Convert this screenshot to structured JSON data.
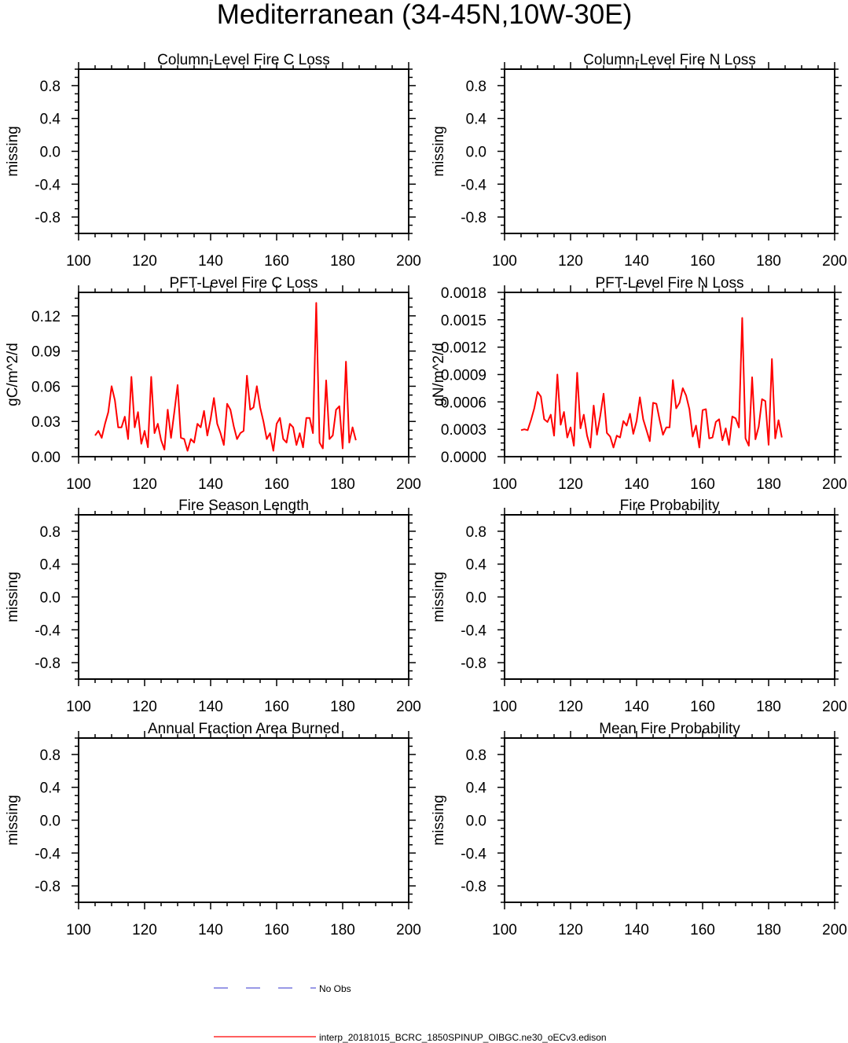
{
  "figure_title": "Mediterranean (34-45N,10W-30E)",
  "legend": {
    "no_obs_label": "No Obs",
    "model_label": "interp_20181015_BCRC_1850SPINUP_OIBGC.ne30_oECv3.edison",
    "no_obs_color": "#3333cc",
    "model_color": "#ff0000"
  },
  "chart_data": [
    {
      "type": "line",
      "title": "Column-Level Fire C Loss",
      "ylabel": "missing",
      "xlim": [
        100,
        200
      ],
      "ylim": [
        -1,
        1
      ],
      "xticks": [
        "100",
        "120",
        "140",
        "160",
        "180",
        "200"
      ],
      "yticks": [
        "0.8",
        "0.4",
        "0.0",
        "-0.4",
        "-0.8"
      ],
      "ytick_values": [
        0.8,
        0.4,
        0.0,
        -0.4,
        -0.8
      ],
      "series": []
    },
    {
      "type": "line",
      "title": "Column-Level Fire N Loss",
      "ylabel": "missing",
      "xlim": [
        100,
        200
      ],
      "ylim": [
        -1,
        1
      ],
      "xticks": [
        "100",
        "120",
        "140",
        "160",
        "180",
        "200"
      ],
      "yticks": [
        "0.8",
        "0.4",
        "0.0",
        "-0.4",
        "-0.8"
      ],
      "ytick_values": [
        0.8,
        0.4,
        0.0,
        -0.4,
        -0.8
      ],
      "series": []
    },
    {
      "type": "line",
      "title": "PFT-Level Fire C Loss",
      "ylabel": "gC/m^2/d",
      "xlim": [
        100,
        200
      ],
      "ylim": [
        0,
        0.14
      ],
      "xticks": [
        "100",
        "120",
        "140",
        "160",
        "180",
        "200"
      ],
      "yticks": [
        "0.12",
        "0.09",
        "0.06",
        "0.03",
        "0.00"
      ],
      "ytick_values": [
        0.12,
        0.09,
        0.06,
        0.03,
        0.0
      ],
      "series": [
        {
          "color": "#ff0000",
          "x": [
            105,
            106,
            107,
            108,
            109,
            110,
            111,
            112,
            113,
            114,
            115,
            116,
            117,
            118,
            119,
            120,
            121,
            122,
            123,
            124,
            125,
            126,
            127,
            128,
            129,
            130,
            131,
            132,
            133,
            134,
            135,
            136,
            137,
            138,
            139,
            140,
            141,
            142,
            143,
            144,
            145,
            146,
            147,
            148,
            149,
            150,
            151,
            152,
            153,
            154,
            155,
            156,
            157,
            158,
            159,
            160,
            161,
            162,
            163,
            164,
            165,
            166,
            167,
            168,
            169,
            170,
            171,
            172,
            173,
            174,
            175,
            176,
            177,
            178,
            179,
            180,
            181,
            182,
            183,
            184
          ],
          "y": [
            0.018,
            0.022,
            0.016,
            0.028,
            0.038,
            0.06,
            0.048,
            0.025,
            0.025,
            0.034,
            0.015,
            0.068,
            0.025,
            0.038,
            0.011,
            0.022,
            0.008,
            0.068,
            0.02,
            0.028,
            0.014,
            0.006,
            0.04,
            0.016,
            0.038,
            0.061,
            0.016,
            0.015,
            0.005,
            0.015,
            0.012,
            0.028,
            0.025,
            0.039,
            0.018,
            0.032,
            0.05,
            0.028,
            0.02,
            0.01,
            0.045,
            0.04,
            0.026,
            0.015,
            0.02,
            0.022,
            0.069,
            0.04,
            0.042,
            0.06,
            0.042,
            0.03,
            0.015,
            0.02,
            0.005,
            0.028,
            0.033,
            0.015,
            0.012,
            0.028,
            0.025,
            0.01,
            0.02,
            0.008,
            0.033,
            0.033,
            0.02,
            0.131,
            0.012,
            0.007,
            0.065,
            0.015,
            0.018,
            0.04,
            0.043,
            0.007,
            0.081,
            0.012,
            0.025,
            0.014
          ]
        }
      ]
    },
    {
      "type": "line",
      "title": "PFT-Level Fire N Loss",
      "ylabel": "gN/m^2/d",
      "xlim": [
        100,
        200
      ],
      "ylim": [
        0,
        0.0018
      ],
      "xticks": [
        "100",
        "120",
        "140",
        "160",
        "180",
        "200"
      ],
      "yticks": [
        "0.0018",
        "0.0015",
        "0.0012",
        "0.0009",
        "0.0006",
        "0.0003",
        "0.0000"
      ],
      "ytick_values": [
        0.0018,
        0.0015,
        0.0012,
        0.0009,
        0.0006,
        0.0003,
        0.0
      ],
      "series": [
        {
          "color": "#ff0000",
          "x": [
            105,
            106,
            107,
            108,
            109,
            110,
            111,
            112,
            113,
            114,
            115,
            116,
            117,
            118,
            119,
            120,
            121,
            122,
            123,
            124,
            125,
            126,
            127,
            128,
            129,
            130,
            131,
            132,
            133,
            134,
            135,
            136,
            137,
            138,
            139,
            140,
            141,
            142,
            143,
            144,
            145,
            146,
            147,
            148,
            149,
            150,
            151,
            152,
            153,
            154,
            155,
            156,
            157,
            158,
            159,
            160,
            161,
            162,
            163,
            164,
            165,
            166,
            167,
            168,
            169,
            170,
            171,
            172,
            173,
            174,
            175,
            176,
            177,
            178,
            179,
            180,
            181,
            182,
            183,
            184
          ],
          "y": [
            0.00029,
            0.0003,
            0.00029,
            0.0004,
            0.00053,
            0.00071,
            0.00066,
            0.00041,
            0.00038,
            0.00046,
            0.00023,
            0.0009,
            0.00035,
            0.00049,
            0.00021,
            0.00032,
            0.00012,
            0.00092,
            0.00031,
            0.00046,
            0.00023,
            0.0001,
            0.00056,
            0.00024,
            0.00045,
            0.00069,
            0.00026,
            0.00022,
            0.0001,
            0.00023,
            0.00021,
            0.00039,
            0.00034,
            0.00047,
            0.00025,
            0.00039,
            0.00065,
            0.00041,
            0.00029,
            0.00017,
            0.00059,
            0.00058,
            0.0004,
            0.00024,
            0.00032,
            0.00032,
            0.00084,
            0.00053,
            0.00059,
            0.00075,
            0.00067,
            0.00052,
            0.00022,
            0.00034,
            0.0001,
            0.00051,
            0.00052,
            0.0002,
            0.00021,
            0.00038,
            0.00041,
            0.00018,
            0.00031,
            0.00013,
            0.00044,
            0.00042,
            0.00032,
            0.00152,
            0.0002,
            0.00012,
            0.00087,
            0.00019,
            0.00033,
            0.00063,
            0.00061,
            0.00013,
            0.00107,
            0.0002,
            0.0004,
            0.00021
          ]
        }
      ]
    },
    {
      "type": "line",
      "title": "Fire Season Length",
      "ylabel": "missing",
      "xlim": [
        100,
        200
      ],
      "ylim": [
        -1,
        1
      ],
      "xticks": [
        "100",
        "120",
        "140",
        "160",
        "180",
        "200"
      ],
      "yticks": [
        "0.8",
        "0.4",
        "0.0",
        "-0.4",
        "-0.8"
      ],
      "ytick_values": [
        0.8,
        0.4,
        0.0,
        -0.4,
        -0.8
      ],
      "series": []
    },
    {
      "type": "line",
      "title": "Fire Probability",
      "ylabel": "missing",
      "xlim": [
        100,
        200
      ],
      "ylim": [
        -1,
        1
      ],
      "xticks": [
        "100",
        "120",
        "140",
        "160",
        "180",
        "200"
      ],
      "yticks": [
        "0.8",
        "0.4",
        "0.0",
        "-0.4",
        "-0.8"
      ],
      "ytick_values": [
        0.8,
        0.4,
        0.0,
        -0.4,
        -0.8
      ],
      "series": []
    },
    {
      "type": "line",
      "title": "Annual Fraction Area Burned",
      "ylabel": "missing",
      "xlim": [
        100,
        200
      ],
      "ylim": [
        -1,
        1
      ],
      "xticks": [
        "100",
        "120",
        "140",
        "160",
        "180",
        "200"
      ],
      "yticks": [
        "0.8",
        "0.4",
        "0.0",
        "-0.4",
        "-0.8"
      ],
      "ytick_values": [
        0.8,
        0.4,
        0.0,
        -0.4,
        -0.8
      ],
      "series": []
    },
    {
      "type": "line",
      "title": "Mean Fire Probability",
      "ylabel": "missing",
      "xlim": [
        100,
        200
      ],
      "ylim": [
        -1,
        1
      ],
      "xticks": [
        "100",
        "120",
        "140",
        "160",
        "180",
        "200"
      ],
      "yticks": [
        "0.8",
        "0.4",
        "0.0",
        "-0.4",
        "-0.8"
      ],
      "ytick_values": [
        0.8,
        0.4,
        0.0,
        -0.4,
        -0.8
      ],
      "series": []
    }
  ]
}
